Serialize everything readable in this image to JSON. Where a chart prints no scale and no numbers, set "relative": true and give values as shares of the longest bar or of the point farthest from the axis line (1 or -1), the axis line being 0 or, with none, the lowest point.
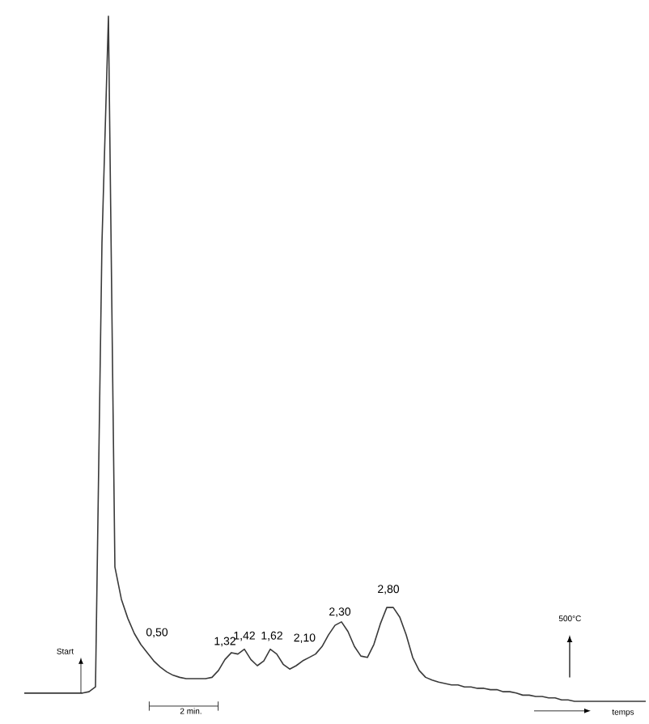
{
  "chart_data": {
    "type": "line",
    "relative": true,
    "color": "#3a3a3a",
    "categories": [
      null,
      null,
      null,
      null,
      null,
      null,
      null,
      null,
      null,
      null,
      null,
      null,
      null,
      null,
      null,
      null,
      null,
      null,
      null,
      null,
      null,
      null,
      null,
      null,
      null,
      null,
      null,
      null,
      null,
      null,
      null,
      null,
      null,
      null,
      null,
      null,
      null,
      null,
      null,
      null,
      null,
      null,
      null,
      null,
      null,
      null,
      null,
      null,
      null,
      null,
      null,
      null,
      null,
      null,
      null,
      null,
      null,
      null,
      null,
      null,
      null,
      null,
      null,
      null,
      null,
      null,
      null,
      null,
      null,
      null,
      null,
      null,
      null,
      null,
      null,
      null,
      null,
      null,
      null,
      null,
      null,
      null,
      null,
      null,
      null,
      null,
      null,
      null,
      null,
      null,
      null,
      null,
      null,
      null,
      null,
      null,
      null
    ],
    "values": [
      0.012,
      0.012,
      0.012,
      0.012,
      0.012,
      0.012,
      0.012,
      0.012,
      0.012,
      0.012,
      0.014,
      0.021,
      0.669,
      1,
      0.196,
      0.149,
      0.121,
      0.099,
      0.083,
      0.071,
      0.059,
      0.05,
      0.043,
      0.038,
      0.035,
      0.033,
      0.033,
      0.033,
      0.033,
      0.035,
      0.045,
      0.061,
      0.071,
      0.069,
      0.076,
      0.061,
      0.052,
      0.059,
      0.076,
      0.069,
      0.054,
      0.047,
      0.052,
      0.059,
      0.064,
      0.069,
      0.08,
      0.097,
      0.111,
      0.116,
      0.102,
      0.08,
      0.066,
      0.064,
      0.083,
      0.113,
      0.137,
      0.137,
      0.123,
      0.097,
      0.064,
      0.045,
      0.035,
      0.031,
      0.028,
      0.026,
      0.024,
      0.024,
      0.021,
      0.021,
      0.019,
      0.019,
      0.017,
      0.017,
      0.014,
      0.014,
      0.012,
      0.009,
      0.009,
      0.007,
      0.007,
      0.005,
      0.005,
      0.002,
      0.002,
      0,
      0,
      0,
      0,
      0,
      0,
      0,
      0,
      0,
      0,
      0,
      0
    ],
    "annotations": [
      "0,50",
      "1,32",
      "1,42",
      "1,62",
      "2,10",
      "2,30",
      "2,80",
      "Start",
      "500°C",
      "2 min.",
      "temps"
    ]
  }
}
